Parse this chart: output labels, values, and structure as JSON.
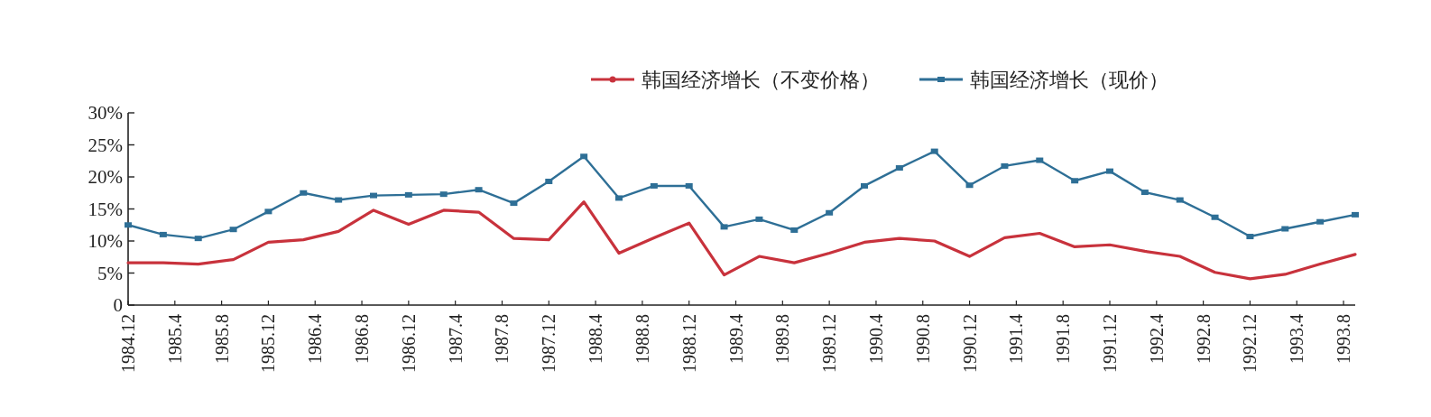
{
  "chart_data": {
    "type": "line",
    "x": [
      "1984-12",
      "1985-03",
      "1985-06",
      "1985-09",
      "1985-12",
      "1986-03",
      "1986-06",
      "1986-09",
      "1986-12",
      "1987-03",
      "1987-06",
      "1987-09",
      "1987-12",
      "1988-03",
      "1988-06",
      "1988-09",
      "1988-12",
      "1989-03",
      "1989-06",
      "1989-09",
      "1989-12",
      "1990-03",
      "1990-06",
      "1990-09",
      "1990-12",
      "1991-03",
      "1991-06",
      "1991-09",
      "1991-12",
      "1992-03",
      "1992-06",
      "1992-09",
      "1992-12",
      "1993-03",
      "1993-06",
      "1993-09"
    ],
    "series": [
      {
        "name": "韩国经济增长（不变价格）",
        "color": "#c8323c",
        "marker": "none",
        "values": [
          6.6,
          6.6,
          6.4,
          7.1,
          9.8,
          10.2,
          11.5,
          14.8,
          12.6,
          14.8,
          14.5,
          10.4,
          10.2,
          16.1,
          8.1,
          10.5,
          12.8,
          4.7,
          7.6,
          6.6,
          8.1,
          9.8,
          10.4,
          10.0,
          7.6,
          10.5,
          11.2,
          9.1,
          9.4,
          8.4,
          7.6,
          5.1,
          4.1,
          4.8,
          6.4,
          7.9
        ]
      },
      {
        "name": "韩国经济增长（现价）",
        "color": "#2e6f96",
        "marker": "square",
        "values": [
          12.5,
          11.0,
          10.4,
          11.8,
          14.6,
          17.5,
          16.4,
          17.1,
          17.2,
          17.3,
          18.0,
          15.9,
          19.3,
          23.2,
          16.7,
          18.6,
          18.6,
          12.2,
          13.4,
          11.7,
          14.4,
          18.6,
          21.4,
          24.0,
          18.7,
          21.7,
          22.6,
          19.4,
          20.9,
          17.6,
          16.4,
          13.7,
          10.7,
          11.9,
          13.0,
          14.1
        ]
      }
    ],
    "xlim": [
      "1984-12",
      "1993-09"
    ],
    "xticks": [
      {
        "value": "1984-12",
        "label": "1984.12"
      },
      {
        "value": "1985-04",
        "label": "1985.4"
      },
      {
        "value": "1985-08",
        "label": "1985.8"
      },
      {
        "value": "1985-12",
        "label": "1985.12"
      },
      {
        "value": "1986-04",
        "label": "1986.4"
      },
      {
        "value": "1986-08",
        "label": "1986.8"
      },
      {
        "value": "1986-12",
        "label": "1986.12"
      },
      {
        "value": "1987-04",
        "label": "1987.4"
      },
      {
        "value": "1987-08",
        "label": "1987.8"
      },
      {
        "value": "1987-12",
        "label": "1987.12"
      },
      {
        "value": "1988-04",
        "label": "1988.4"
      },
      {
        "value": "1988-08",
        "label": "1988.8"
      },
      {
        "value": "1988-12",
        "label": "1988.12"
      },
      {
        "value": "1989-04",
        "label": "1989.4"
      },
      {
        "value": "1989-08",
        "label": "1989.8"
      },
      {
        "value": "1989-12",
        "label": "1989.12"
      },
      {
        "value": "1990-04",
        "label": "1990.4"
      },
      {
        "value": "1990-08",
        "label": "1990.8"
      },
      {
        "value": "1990-12",
        "label": "1990.12"
      },
      {
        "value": "1991-04",
        "label": "1991.4"
      },
      {
        "value": "1991-08",
        "label": "1991.8"
      },
      {
        "value": "1991-12",
        "label": "1991.12"
      },
      {
        "value": "1992-04",
        "label": "1992.4"
      },
      {
        "value": "1992-08",
        "label": "1992.8"
      },
      {
        "value": "1992-12",
        "label": "1992.12"
      },
      {
        "value": "1993-04",
        "label": "1993.4"
      },
      {
        "value": "1993-08",
        "label": "1993.8"
      }
    ],
    "ylim": [
      0,
      30
    ],
    "yticks": [
      0,
      {
        "value": 5,
        "label": "5%"
      },
      {
        "value": 10,
        "label": "10%"
      },
      {
        "value": 15,
        "label": "15%"
      },
      {
        "value": 20,
        "label": "20%"
      },
      {
        "value": 25,
        "label": "25%"
      },
      {
        "value": 30,
        "label": "30%"
      }
    ],
    "grid": false,
    "legend": "top",
    "line_style": "solid"
  }
}
